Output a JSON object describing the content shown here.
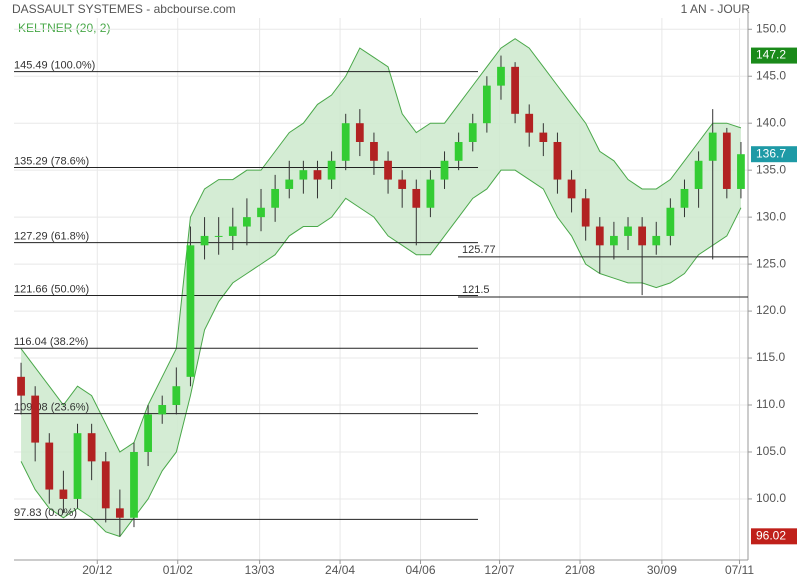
{
  "chart_data": {
    "type": "candlestick",
    "title": "DASSAULT SYSTEMES - abcbourse.com",
    "period": "1 AN - JOUR",
    "indicator": "KELTNER (20, 2)",
    "ylim": [
      93.5,
      151.2
    ],
    "yticks": [
      {
        "value": 100,
        "label": "100.0"
      },
      {
        "value": 105,
        "label": "105.0"
      },
      {
        "value": 110,
        "label": "110.0"
      },
      {
        "value": 115,
        "label": "115.0"
      },
      {
        "value": 120,
        "label": "120.0"
      },
      {
        "value": 125,
        "label": "125.0"
      },
      {
        "value": 130,
        "label": "130.0"
      },
      {
        "value": 135,
        "label": "135.0"
      },
      {
        "value": 140,
        "label": "140.0"
      },
      {
        "value": 145,
        "label": "145.0"
      },
      {
        "value": 150,
        "label": "150.0"
      }
    ],
    "xlim": [
      0,
      52
    ],
    "xticks": [
      {
        "value": 5.9,
        "label": "20/12"
      },
      {
        "value": 11.6,
        "label": "01/02"
      },
      {
        "value": 17.4,
        "label": "13/03"
      },
      {
        "value": 23.1,
        "label": "24/04"
      },
      {
        "value": 28.8,
        "label": "04/06"
      },
      {
        "value": 34.4,
        "label": "12/07"
      },
      {
        "value": 40.1,
        "label": "21/08"
      },
      {
        "value": 45.9,
        "label": "30/09"
      },
      {
        "value": 51.4,
        "label": "07/11"
      }
    ],
    "grid": true,
    "up_color": "#33cc33",
    "down_color": "#b22222",
    "open": [
      113,
      111,
      106,
      101,
      100,
      107,
      104,
      99,
      98,
      105,
      109,
      110,
      113,
      127,
      128,
      128,
      129,
      130,
      131,
      133,
      134,
      135,
      134,
      136,
      140,
      138,
      136,
      134,
      133,
      131,
      134,
      136,
      138,
      140,
      144,
      146,
      141,
      139,
      138,
      134,
      132,
      129,
      127,
      128,
      129,
      127,
      128,
      131,
      133,
      136,
      139,
      133
    ],
    "high": [
      114.5,
      112,
      107,
      103,
      108,
      108,
      105,
      101,
      106,
      110,
      111,
      114,
      129,
      130,
      130,
      131,
      132,
      133,
      134.5,
      136,
      136,
      136,
      137,
      141,
      141.5,
      139,
      137,
      135,
      134,
      135,
      137,
      139,
      141,
      145,
      147.2,
      146.5,
      142,
      140,
      139,
      135,
      133,
      130,
      129.5,
      130,
      130,
      129.5,
      132,
      134,
      137,
      141.5,
      139.5,
      138
    ],
    "low": [
      109,
      104,
      99.5,
      98.5,
      99,
      102,
      97.5,
      96.02,
      97,
      103.5,
      108,
      109,
      112,
      125.5,
      126,
      126.5,
      127,
      128.5,
      129.5,
      132,
      132.5,
      132,
      133,
      135,
      136.5,
      134.5,
      132.5,
      131,
      127,
      130,
      133,
      135,
      137,
      139,
      142.5,
      140,
      137.5,
      136.5,
      132.5,
      130.5,
      127.5,
      124,
      125.5,
      126.5,
      121.7,
      126,
      127,
      130,
      131,
      125.5,
      132,
      132
    ],
    "close": [
      111,
      106,
      101,
      100,
      107,
      104,
      99,
      98,
      105,
      109,
      110,
      112,
      127,
      128,
      128,
      129,
      130,
      131,
      133,
      134,
      135,
      134,
      136,
      140,
      138,
      136,
      134,
      133,
      131,
      134,
      136,
      138,
      140,
      144,
      146,
      141,
      139,
      138,
      134,
      132,
      129,
      127,
      128,
      129,
      127,
      128,
      131,
      133,
      136,
      139,
      133,
      136.7
    ],
    "keltner": {
      "color": "#4aa84a",
      "fill": "#cde9cd",
      "upper": [
        116,
        114,
        112,
        110,
        112,
        111,
        108,
        105,
        106,
        110,
        113,
        116,
        130,
        133,
        134,
        134,
        135,
        135,
        137,
        139,
        140,
        142,
        143,
        145,
        148,
        147,
        146,
        141,
        139,
        140,
        140,
        142,
        144,
        146,
        148,
        149,
        148,
        146,
        144,
        142,
        140,
        137,
        136,
        134,
        133,
        133,
        134,
        136,
        138,
        140,
        140,
        139.5
      ],
      "lower": [
        104,
        101,
        99,
        98,
        99,
        98,
        96.5,
        96,
        98,
        100,
        103,
        105,
        111,
        118,
        121,
        123,
        124,
        125,
        126,
        128,
        129,
        129,
        130,
        132,
        131,
        130,
        128,
        127,
        126,
        126,
        128,
        130,
        132,
        133,
        135,
        135,
        134,
        133,
        130,
        128,
        125,
        124,
        123.5,
        123,
        123,
        122.5,
        123,
        124,
        126,
        127,
        128,
        131
      ]
    },
    "fib_levels": [
      {
        "value": 145.49,
        "label": "145.49 (100.0%)"
      },
      {
        "value": 135.29,
        "label": "135.29 (78.6%)"
      },
      {
        "value": 127.29,
        "label": "127.29 (61.8%)"
      },
      {
        "value": 121.66,
        "label": "121.66 (50.0%)"
      },
      {
        "value": 116.04,
        "label": "116.04 (38.2%)"
      },
      {
        "value": 109.08,
        "label": "109.08 (23.6%)"
      },
      {
        "value": 97.83,
        "label": "97.83 (0.0%)"
      }
    ],
    "support_levels": [
      125.77,
      121.5
    ],
    "price_tags": [
      {
        "value": 147.2,
        "color": "#1a8a1a"
      },
      {
        "value": 136.7,
        "color": "#1e9aa6"
      },
      {
        "value": 96.02,
        "color": "#c0201a"
      }
    ]
  }
}
